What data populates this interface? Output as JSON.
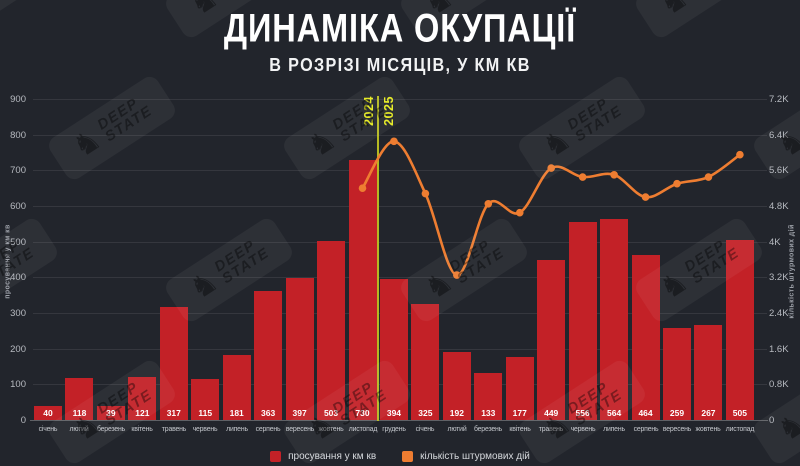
{
  "title": "ДИНАМІКА ОКУПАЦІЇ",
  "subtitle": "В РОЗРІЗІ МІСЯЦІВ, У КМ КВ",
  "watermark": {
    "line1": "DEEP",
    "line2": "STATE",
    "icon": "knight-icon",
    "glyph": "♞"
  },
  "colors": {
    "background": "#22252c",
    "bar": "#c32127",
    "line": "#ee7d31",
    "divider": "#b5b922",
    "year_label": "#e6eb1f",
    "grid": "#3a3d44",
    "bar_label": "#ffffff",
    "tick_text": "#b7bac0"
  },
  "chart_data": {
    "type": "bar+line",
    "categories": [
      "січень",
      "лютий",
      "березень",
      "квітень",
      "травень",
      "червень",
      "липень",
      "серпень",
      "вересень",
      "жовтень",
      "листопад",
      "грудень",
      "січень",
      "лютий",
      "березень",
      "квітень",
      "травень",
      "червень",
      "липень",
      "серпень",
      "вересень",
      "жовтень",
      "листопад"
    ],
    "series": [
      {
        "name": "просування у км кв",
        "type": "bar",
        "axis": "left",
        "values": [
          40,
          118,
          39,
          121,
          317,
          115,
          181,
          363,
          397,
          503,
          730,
          394,
          325,
          192,
          133,
          177,
          449,
          556,
          564,
          464,
          259,
          267,
          505
        ]
      },
      {
        "name": "кількість штурмових дій",
        "type": "line",
        "axis": "right",
        "start_index": 10,
        "values": [
          5200,
          6250,
          5080,
          3250,
          4850,
          4650,
          5650,
          5450,
          5500,
          5000,
          5300,
          5450,
          5950
        ]
      }
    ],
    "left_axis": {
      "label": "просування у км кв",
      "ticks": [
        "0",
        "100",
        "200",
        "300",
        "400",
        "500",
        "600",
        "700",
        "800",
        "900"
      ],
      "min": 0,
      "max": 900
    },
    "right_axis": {
      "label": "кількість штурмових дій",
      "ticks": [
        "0",
        "0.8K",
        "1.6K",
        "2.4K",
        "3.2K",
        "4K",
        "4.8K",
        "5.6K",
        "6.4K",
        "7.2K"
      ],
      "min": 0,
      "max": 7200
    },
    "divider": {
      "left_label": "2024",
      "right_label": "2025",
      "after_index": 10
    },
    "legend": [
      {
        "label": "просування у км кв",
        "color_key": "bar"
      },
      {
        "label": "кількість штурмових дій",
        "color_key": "line"
      }
    ],
    "grid": true,
    "legend_position": "bottom-center"
  }
}
